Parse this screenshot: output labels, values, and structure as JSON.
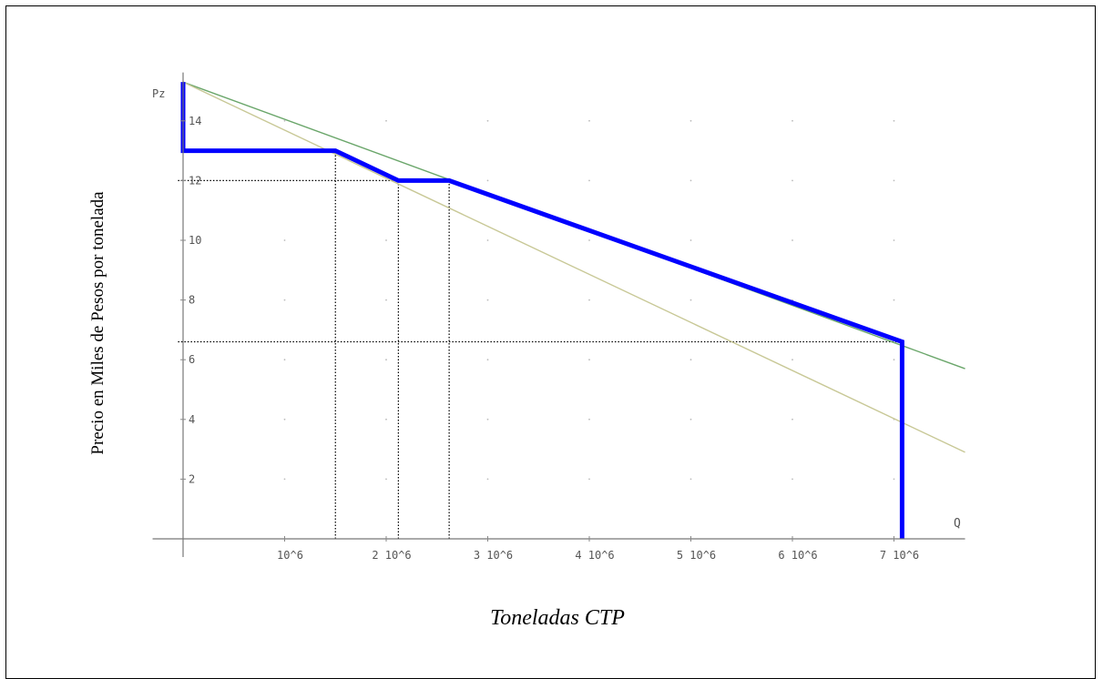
{
  "chart_data": {
    "type": "line",
    "y_axis_symbol": "Pz",
    "x_axis_symbol": "Q",
    "ylabel": "Precio en Miles de Pesos por tonelada",
    "xlabel": "Toneladas CTP",
    "x_ticks": [
      {
        "value": 1,
        "label": "10^6"
      },
      {
        "value": 2,
        "label": "2 10^6"
      },
      {
        "value": 3,
        "label": "3 10^6"
      },
      {
        "value": 4,
        "label": "4 10^6"
      },
      {
        "value": 5,
        "label": "5 10^6"
      },
      {
        "value": 6,
        "label": "6 10^6"
      },
      {
        "value": 7,
        "label": "7 10^6"
      }
    ],
    "y_ticks": [
      {
        "value": 2,
        "label": "2"
      },
      {
        "value": 4,
        "label": "4"
      },
      {
        "value": 6,
        "label": "6"
      },
      {
        "value": 8,
        "label": "8"
      },
      {
        "value": 10,
        "label": "10"
      },
      {
        "value": 12,
        "label": "12"
      },
      {
        "value": 14,
        "label": "14"
      }
    ],
    "xlim": [
      -0.3,
      7.7
    ],
    "ylim": [
      0,
      15.5
    ],
    "grid": "dotted",
    "series": [
      {
        "key": "green_line",
        "color": "#6aa66a",
        "points": [
          [
            0,
            15.3
          ],
          [
            7.7,
            5.7
          ]
        ]
      },
      {
        "key": "olive_line",
        "color": "#c8c896",
        "points": [
          [
            0,
            15.3
          ],
          [
            7.7,
            2.9
          ]
        ]
      },
      {
        "key": "blue_step",
        "color": "#0000ff",
        "points": [
          [
            0,
            15.3
          ],
          [
            0,
            13
          ],
          [
            1.5,
            13
          ],
          [
            2.12,
            12
          ],
          [
            2.62,
            12
          ],
          [
            7.08,
            6.6
          ],
          [
            7.08,
            0
          ]
        ]
      }
    ],
    "reference_lines": [
      {
        "orientation": "horizontal",
        "y": 12,
        "x_from": -0.05,
        "x_to": 2.62
      },
      {
        "orientation": "horizontal",
        "y": 6.6,
        "x_from": -0.05,
        "x_to": 7.08
      },
      {
        "orientation": "vertical",
        "x": 1.5,
        "y_from": 0,
        "y_to": 13
      },
      {
        "orientation": "vertical",
        "x": 2.12,
        "y_from": 0,
        "y_to": 12
      },
      {
        "orientation": "vertical",
        "x": 2.62,
        "y_from": 0,
        "y_to": 12
      }
    ]
  }
}
